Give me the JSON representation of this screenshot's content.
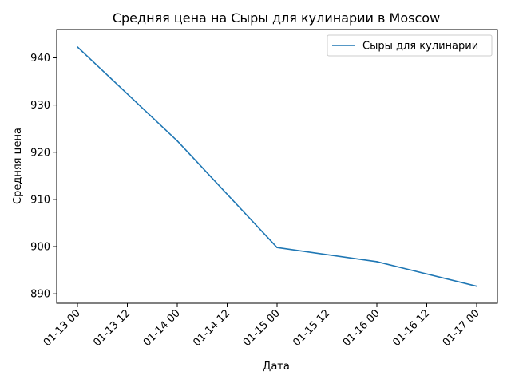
{
  "chart_data": {
    "type": "line",
    "title": "Средняя цена на Сыры для кулинарии в Moscow",
    "xlabel": "Дата",
    "ylabel": "Средняя цена",
    "x_ticks": [
      "01-13 00",
      "01-13 12",
      "01-14 00",
      "01-14 12",
      "01-15 00",
      "01-15 12",
      "01-16 00",
      "01-16 12",
      "01-17 00"
    ],
    "y_ticks": [
      890,
      900,
      910,
      920,
      930,
      940
    ],
    "ylim": [
      888,
      946
    ],
    "legend_position": "top-right",
    "grid": false,
    "series": [
      {
        "name": "Сыры для кулинарии",
        "color": "#1f77b4",
        "x": [
          "01-13 00",
          "01-14 00",
          "01-15 00",
          "01-16 00",
          "01-17 00"
        ],
        "values": [
          942.3,
          922.4,
          899.8,
          896.8,
          891.6
        ]
      }
    ]
  }
}
